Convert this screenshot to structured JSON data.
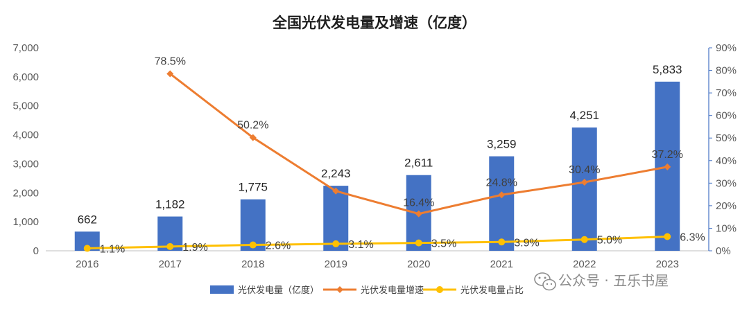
{
  "chart_data": {
    "type": "bar",
    "title": "全国光伏发电量及增速（亿度）",
    "categories": [
      "2016",
      "2017",
      "2018",
      "2019",
      "2020",
      "2021",
      "2022",
      "2023"
    ],
    "series": [
      {
        "name": "光伏发电量（亿度）",
        "type": "bar",
        "axis": "left",
        "values": [
          662,
          1182,
          1775,
          2243,
          2611,
          3259,
          4251,
          5833
        ],
        "labels": [
          "662",
          "1,182",
          "1,775",
          "2,243",
          "2,611",
          "3,259",
          "4,251",
          "5,833"
        ]
      },
      {
        "name": "光伏发电量增速",
        "type": "line",
        "axis": "right",
        "values": [
          null,
          78.5,
          50.2,
          26.5,
          16.4,
          24.8,
          30.4,
          37.2
        ],
        "labels": [
          "",
          "78.5%",
          "50.2%",
          "",
          "16.4%",
          "24.8%",
          "30.4%",
          "37.2%"
        ]
      },
      {
        "name": "光伏发电量占比",
        "type": "line",
        "axis": "right",
        "values": [
          1.1,
          1.9,
          2.6,
          3.1,
          3.5,
          3.9,
          5.0,
          6.3
        ],
        "labels": [
          "1.1%",
          "1.9%",
          "2.6%",
          "3.1%",
          "3.5%",
          "3.9%",
          "5.0%",
          "6.3%"
        ]
      }
    ],
    "y_left": {
      "ylim": [
        0,
        7000
      ],
      "ticks": [
        "0",
        "1,000",
        "2,000",
        "3,000",
        "4,000",
        "5,000",
        "6,000",
        "7,000"
      ]
    },
    "y_right": {
      "ylim": [
        0,
        90
      ],
      "ticks": [
        "0%",
        "10%",
        "20%",
        "30%",
        "40%",
        "50%",
        "60%",
        "70%",
        "80%",
        "90%"
      ]
    },
    "grid": false,
    "legend": "bottom",
    "colors": {
      "bar": "#4472c4",
      "growth": "#ed7d31",
      "share": "#ffc000",
      "axis_right": "#4472c4"
    }
  },
  "watermark": {
    "icon": "wechat-icon",
    "text": "公众号 · 五乐书屋"
  }
}
